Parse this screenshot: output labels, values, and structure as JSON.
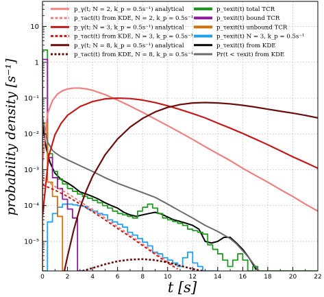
{
  "chart_data": {
    "type": "line",
    "title": "",
    "xlabel": "t  [s]",
    "ylabel": "probability density  [s⁻¹]",
    "x_range": [
      0,
      22
    ],
    "y_range": [
      1.5e-06,
      50
    ],
    "y_scale": "log",
    "grid": true,
    "legend_placement": "top",
    "x_ticks": [
      "0",
      "2",
      "4",
      "6",
      "8",
      "10",
      "12",
      "14",
      "16",
      "18",
      "20",
      "22"
    ],
    "y_ticks": [
      {
        "value": 10,
        "label": "10"
      },
      {
        "value": 1,
        "label": "1"
      },
      {
        "value": 0.1,
        "label": "10⁻¹"
      },
      {
        "value": 0.01,
        "label": "10⁻²"
      },
      {
        "value": 0.001,
        "label": "10⁻³"
      },
      {
        "value": 0.0001,
        "label": "10⁻⁴"
      },
      {
        "value": 1e-05,
        "label": "10⁻⁵"
      }
    ],
    "series": [
      {
        "name": "p_γ(t; N = 2, k_p = 0.5s⁻¹) analytical",
        "color": "#f08080",
        "style": "solid",
        "width": 2.2,
        "x": [
          0,
          0.4,
          0.8,
          1.2,
          1.6,
          2,
          2.5,
          3,
          3.5,
          4,
          5,
          6,
          7,
          8,
          9,
          10,
          11,
          12,
          13,
          14,
          15,
          16,
          17,
          18,
          19,
          20,
          21,
          22
        ],
        "y": [
          0.0015,
          0.036,
          0.085,
          0.13,
          0.16,
          0.18,
          0.19,
          0.19,
          0.18,
          0.165,
          0.125,
          0.088,
          0.06,
          0.04,
          0.026,
          0.017,
          0.011,
          0.007,
          0.0044,
          0.0028,
          0.0018,
          0.0011,
          0.0007,
          0.00045,
          0.00028,
          0.00018,
          0.00011,
          7e-05
        ]
      },
      {
        "name": "p_τact(t) from KDE, N = 2, k_p = 0.5s⁻¹",
        "color": "#f08080",
        "style": "dashed",
        "width": 2,
        "x": [
          0,
          0.5,
          1,
          2,
          3,
          4,
          5,
          6,
          7,
          8,
          9,
          10,
          10.5
        ],
        "y": [
          0.0006,
          0.00045,
          0.00034,
          0.00022,
          0.00013,
          7.8e-05,
          4.5e-05,
          2.6e-05,
          1.5e-05,
          8.5e-06,
          4.8e-06,
          2.7e-06,
          2e-06
        ]
      },
      {
        "name": "p_γ(t; N = 3, k_p = 0.5s⁻¹) analytical",
        "color": "#c41a1a",
        "style": "solid",
        "width": 2.2,
        "x": [
          0,
          0.5,
          1,
          1.5,
          2,
          3,
          4,
          5,
          6,
          7,
          8,
          9,
          10,
          11,
          12,
          13,
          14,
          15,
          16,
          17,
          18,
          19,
          20,
          21,
          22
        ],
        "y": [
          5e-05,
          0.0024,
          0.0095,
          0.02,
          0.033,
          0.058,
          0.08,
          0.095,
          0.1,
          0.097,
          0.088,
          0.075,
          0.061,
          0.048,
          0.037,
          0.028,
          0.02,
          0.0145,
          0.0103,
          0.0072,
          0.005,
          0.0034,
          0.0023,
          0.0016,
          0.0011
        ]
      },
      {
        "name": "p_τact(t) from KDE, N = 3, k_p = 0.5s⁻¹",
        "color": "#c41a1a",
        "style": "dashed",
        "width": 2,
        "x": [
          0,
          0.5,
          1,
          2,
          3,
          4,
          5,
          6,
          7,
          8,
          9,
          10,
          10.8
        ],
        "y": [
          0.00038,
          0.00032,
          0.00027,
          0.00018,
          0.00011,
          6.8e-05,
          4e-05,
          2.3e-05,
          1.35e-05,
          7.7e-06,
          4.4e-06,
          2.5e-06,
          1.7e-06
        ]
      },
      {
        "name": "p_γ(t; N = 8, k_p = 0.5s⁻¹) analytical",
        "color": "#6b0c0c",
        "style": "solid",
        "width": 2.2,
        "x": [
          1.75,
          2,
          2.5,
          3,
          3.5,
          4,
          5,
          6,
          7,
          8,
          9,
          10,
          11,
          12,
          13,
          14,
          15,
          16,
          17,
          18,
          19,
          20,
          21,
          22
        ],
        "y": [
          1.5e-06,
          3.8e-06,
          2.1e-05,
          8.7e-05,
          0.00026,
          0.00065,
          0.0026,
          0.0072,
          0.0155,
          0.027,
          0.041,
          0.055,
          0.066,
          0.073,
          0.075,
          0.073,
          0.069,
          0.063,
          0.056,
          0.049,
          0.043,
          0.038,
          0.033,
          0.028
        ]
      },
      {
        "name": "p_τact(t) from KDE, N = 8, k_p = 0.5s⁻¹",
        "color": "#6b0c0c",
        "style": "dotted",
        "width": 2.6,
        "x": [
          3.2,
          4,
          5,
          6,
          7,
          8,
          9,
          10,
          11,
          12,
          12.8
        ],
        "y": [
          1.5e-06,
          1.8e-06,
          2.3e-06,
          2.8e-06,
          3.1e-06,
          3.2e-06,
          3e-06,
          2.6e-06,
          2.1e-06,
          1.7e-06,
          1.5e-06
        ]
      },
      {
        "name": "p_τexit(t) total TCR",
        "color": "#1d9a1d",
        "style": "step",
        "width": 1.8,
        "x": [
          0,
          0.4,
          0.8,
          1.2,
          1.6,
          2,
          2.4,
          2.8,
          3.2,
          3.6,
          4,
          4.4,
          4.8,
          5.2,
          5.6,
          6,
          6.4,
          6.8,
          7.2,
          7.6,
          8,
          8.4,
          8.8,
          9.2,
          9.6,
          10,
          10.4,
          10.8,
          11.2,
          11.6,
          12,
          12.4,
          12.8,
          13.2,
          13.6,
          14,
          14.4,
          14.8,
          15.2,
          15.6,
          16,
          16.4,
          16.8,
          17.2,
          17.6,
          18,
          18.4,
          18.8,
          19.2,
          19.6,
          20,
          20.4,
          20.8,
          21.2,
          21.6,
          22
        ],
        "y": [
          2.2,
          0.0028,
          0.0009,
          0.00055,
          0.0004,
          0.0003,
          0.00025,
          0.00021,
          0.00018,
          0.00016,
          0.00014,
          0.00012,
          0.0001,
          8.5e-05,
          7e-05,
          6e-05,
          5.5e-05,
          5e-05,
          4.5e-05,
          7e-05,
          9e-05,
          0.00011,
          8.5e-05,
          6e-05,
          4.5e-05,
          4e-05,
          3.6e-05,
          3.2e-05,
          2.8e-05,
          2.2e-05,
          2e-05,
          1.8e-05,
          1.6e-05,
          8e-06,
          6e-06,
          4.5e-06,
          3e-06,
          2e-06,
          3e-06,
          4.5e-06,
          3e-06,
          1.5e-06,
          2e-06,
          1.5e-06,
          1.5e-06,
          1.5e-06,
          1.5e-06,
          1.5e-06,
          1.5e-06,
          1.5e-06,
          1.5e-06,
          1.5e-06,
          1.5e-06,
          1.5e-06,
          1.5e-06,
          1.5e-06
        ]
      },
      {
        "name": "p_τexit(t) bound TCR",
        "color": "#8e1a9c",
        "style": "step",
        "width": 1.8,
        "x": [
          0,
          0.4,
          0.8,
          1.2,
          1.6,
          2,
          2.4,
          2.8,
          3.2
        ],
        "y": [
          1.2,
          0.0022,
          0.0006,
          0.0003,
          0.00015,
          8e-05,
          4.5e-05,
          1.5e-06,
          1.5e-06
        ]
      },
      {
        "name": "p_τexit(t) unbound TCR",
        "color": "#d0700a",
        "style": "step",
        "width": 1.8,
        "x": [
          0,
          0.4,
          0.8,
          1.2,
          1.6,
          2
        ],
        "y": [
          0.02,
          0.00045,
          0.00018,
          5e-05,
          1.5e-06,
          1.5e-06
        ]
      },
      {
        "name": "p_τexit(t)  N = 3, k_p = 0.5s⁻¹",
        "color": "#1ea0f0",
        "style": "step",
        "width": 1.8,
        "x": [
          0,
          0.4,
          0.8,
          1.2,
          1.6,
          2,
          2.4,
          2.8,
          3.2,
          3.6,
          4,
          4.4,
          4.8,
          5.2,
          5.6,
          6,
          6.4,
          6.8,
          7.2,
          7.6,
          8,
          8.4,
          8.8,
          9.2,
          9.6,
          10,
          10.4,
          10.8,
          11.2,
          11.6,
          12,
          12.4,
          12.8,
          13.2,
          13.6,
          14
        ],
        "y": [
          1.5e-06,
          3.5e-05,
          6e-05,
          9e-05,
          0.00011,
          0.00011,
          0.000105,
          0.0001,
          9.5e-05,
          8e-05,
          7e-05,
          6e-05,
          5.5e-05,
          4e-05,
          3.5e-05,
          3e-05,
          2.5e-05,
          1.8e-05,
          1.5e-05,
          1.2e-05,
          9.5e-06,
          7.5e-06,
          5e-06,
          4.5e-06,
          3.5e-06,
          3e-06,
          2.5e-06,
          2e-06,
          3.5e-06,
          5e-06,
          2.5e-06,
          2e-06,
          1.5e-06,
          1.5e-06,
          1.5e-06,
          1.5e-06
        ]
      },
      {
        "name": "p_τexit(t)  from KDE",
        "color": "#000000",
        "style": "solid",
        "width": 2,
        "x": [
          0,
          0.3,
          0.6,
          1,
          1.5,
          2,
          2.5,
          3,
          3.5,
          4,
          4.5,
          5,
          5.5,
          6,
          6.5,
          7,
          7.5,
          8,
          8.5,
          9,
          9.5,
          10,
          10.5,
          11,
          11.5,
          12,
          12.5,
          13,
          13.5,
          14,
          14.5,
          15,
          15.5,
          16,
          16.5,
          17,
          17.3
        ],
        "y": [
          0.02,
          0.004,
          0.0016,
          0.0008,
          0.00053,
          0.00043,
          0.00033,
          0.00024,
          0.00021,
          0.00018,
          0.00015,
          0.00012,
          0.0001,
          8.5e-05,
          6.5e-05,
          5.5e-05,
          5e-05,
          5.5e-05,
          6e-05,
          6.5e-05,
          5.8e-05,
          4.8e-05,
          4e-05,
          3.6e-05,
          3.2e-05,
          2.8e-05,
          2.2e-05,
          1e-05,
          9e-06,
          1e-05,
          1.3e-05,
          1.3e-05,
          9e-06,
          6e-06,
          3.5e-06,
          1.8e-06,
          1.5e-06
        ]
      },
      {
        "name": "Pr(t < τexit)  from KDE",
        "color": "#6b6b6b",
        "style": "solid",
        "width": 2,
        "x": [
          0,
          0.4,
          0.8,
          1,
          1.5,
          2,
          3,
          4,
          5,
          6,
          7,
          8,
          9,
          10,
          11,
          12,
          13,
          14,
          15,
          15.5,
          16,
          16.5,
          17,
          17.3
        ],
        "y": [
          0.03,
          0.006,
          0.0035,
          0.003,
          0.0023,
          0.0019,
          0.0013,
          0.0009,
          0.0006,
          0.00042,
          0.00031,
          0.00023,
          0.00017,
          0.00011,
          7e-05,
          4.5e-05,
          2.8e-05,
          1.9e-05,
          1.2e-05,
          8.5e-06,
          5.5e-06,
          3.5e-06,
          2e-06,
          1.5e-06
        ]
      }
    ]
  }
}
